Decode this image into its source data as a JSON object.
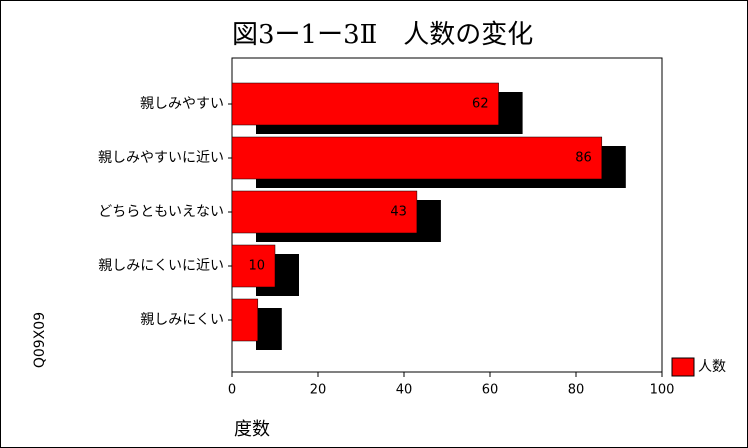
{
  "chart_data": {
    "type": "bar",
    "orientation": "horizontal",
    "title": "図3ー1ー3Ⅱ　人数の変化",
    "y_label": "Q09X09",
    "x_label": "度数",
    "categories": [
      "親しみやすい",
      "親しみやすいに近い",
      "どちらともいえない",
      "親しみにくいに近い",
      "親しみにくい"
    ],
    "series": [
      {
        "name": "人数",
        "color": "#ff0000",
        "shadow_color": "#000000",
        "values": [
          62,
          86,
          43,
          10,
          6
        ],
        "value_labels": [
          "62",
          "86",
          "43",
          "10",
          null
        ]
      }
    ],
    "xlim": [
      0,
      100
    ],
    "xticks": [
      0,
      20,
      40,
      60,
      80,
      100
    ],
    "legend": "bottom-right"
  }
}
